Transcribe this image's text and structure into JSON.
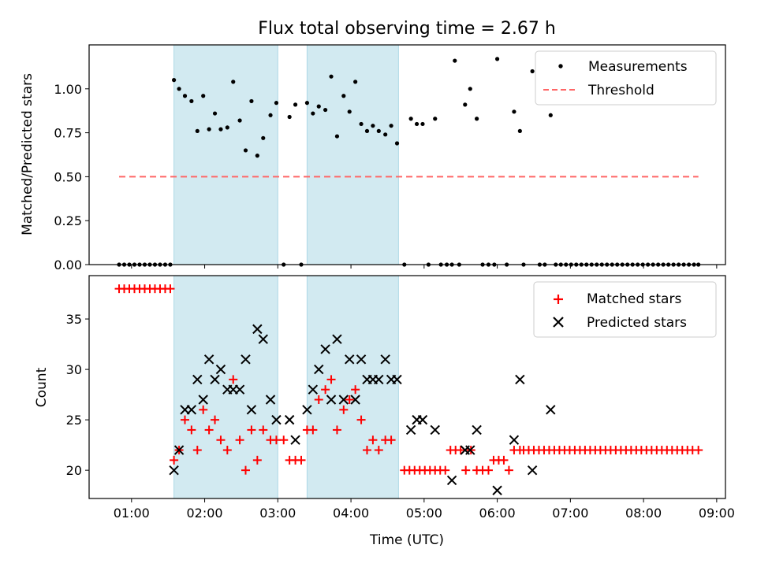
{
  "figure_title": "Flux total observing time = 2.67 h",
  "colors": {
    "shade": "#add8e6",
    "measurement": "#000000",
    "threshold": "#ff6666",
    "matched": "#ff0000",
    "predicted": "#000000"
  },
  "chart_data": [
    {
      "type": "scatter",
      "ylabel": "Matched/Predicted stars",
      "xlim": [
        0.42,
        9.12
      ],
      "ylim": [
        0,
        1.25
      ],
      "x_ticks": [
        1,
        2,
        3,
        4,
        5,
        6,
        7,
        8,
        9
      ],
      "x_tick_labels": [
        "01:00",
        "02:00",
        "03:00",
        "04:00",
        "05:00",
        "06:00",
        "07:00",
        "08:00",
        "09:00"
      ],
      "y_ticks": [
        0,
        0.25,
        0.5,
        0.75,
        1.0
      ],
      "y_tick_labels": [
        "0.00",
        "0.25",
        "0.50",
        "0.75",
        "1.00"
      ],
      "shaded_intervals": [
        [
          1.58,
          3.0
        ],
        [
          3.4,
          4.65
        ]
      ],
      "legend": {
        "placement": "upper-right",
        "entries": [
          "Measurements",
          "Threshold"
        ]
      },
      "threshold": {
        "name": "Threshold",
        "y": 0.5,
        "x_range": [
          0.83,
          8.75
        ]
      },
      "series": [
        {
          "name": "Measurements",
          "points": [
            [
              0.83,
              0
            ],
            [
              0.9,
              0
            ],
            [
              0.97,
              0
            ],
            [
              1.04,
              0
            ],
            [
              1.11,
              0
            ],
            [
              1.18,
              0
            ],
            [
              1.25,
              0
            ],
            [
              1.32,
              0
            ],
            [
              1.39,
              0
            ],
            [
              1.46,
              0
            ],
            [
              1.53,
              0
            ],
            [
              1.58,
              1.05
            ],
            [
              1.65,
              1.0
            ],
            [
              1.73,
              0.96
            ],
            [
              1.82,
              0.93
            ],
            [
              1.9,
              0.76
            ],
            [
              1.98,
              0.96
            ],
            [
              2.06,
              0.77
            ],
            [
              2.14,
              0.86
            ],
            [
              2.22,
              0.77
            ],
            [
              2.31,
              0.78
            ],
            [
              2.39,
              1.04
            ],
            [
              2.48,
              0.82
            ],
            [
              2.56,
              0.65
            ],
            [
              2.64,
              0.93
            ],
            [
              2.72,
              0.62
            ],
            [
              2.8,
              0.72
            ],
            [
              2.9,
              0.85
            ],
            [
              2.98,
              0.92
            ],
            [
              3.08,
              0
            ],
            [
              3.16,
              0.84
            ],
            [
              3.24,
              0.91
            ],
            [
              3.32,
              0
            ],
            [
              3.4,
              0.92
            ],
            [
              3.48,
              0.86
            ],
            [
              3.56,
              0.9
            ],
            [
              3.65,
              0.88
            ],
            [
              3.73,
              1.07
            ],
            [
              3.81,
              0.73
            ],
            [
              3.9,
              0.96
            ],
            [
              3.98,
              0.87
            ],
            [
              4.06,
              1.04
            ],
            [
              4.14,
              0.8
            ],
            [
              4.22,
              0.76
            ],
            [
              4.3,
              0.79
            ],
            [
              4.38,
              0.76
            ],
            [
              4.47,
              0.74
            ],
            [
              4.55,
              0.79
            ],
            [
              4.63,
              0.69
            ],
            [
              4.73,
              0
            ],
            [
              4.82,
              0.83
            ],
            [
              4.9,
              0.8
            ],
            [
              4.98,
              0.8
            ],
            [
              5.06,
              0
            ],
            [
              5.15,
              0.83
            ],
            [
              5.23,
              0
            ],
            [
              5.31,
              0
            ],
            [
              5.38,
              0
            ],
            [
              5.42,
              1.16
            ],
            [
              5.48,
              0
            ],
            [
              5.56,
              0.91
            ],
            [
              5.63,
              1.0
            ],
            [
              5.72,
              0.83
            ],
            [
              5.8,
              0
            ],
            [
              5.88,
              0
            ],
            [
              5.96,
              0
            ],
            [
              6.0,
              1.17
            ],
            [
              6.13,
              0
            ],
            [
              6.23,
              0.87
            ],
            [
              6.31,
              0.76
            ],
            [
              6.36,
              0
            ],
            [
              6.48,
              1.1
            ],
            [
              6.58,
              0
            ],
            [
              6.65,
              0
            ],
            [
              6.73,
              0.85
            ],
            [
              6.8,
              0
            ],
            [
              6.87,
              0
            ],
            [
              6.94,
              0
            ],
            [
              7.01,
              0
            ],
            [
              7.08,
              0
            ],
            [
              7.15,
              0
            ],
            [
              7.22,
              0
            ],
            [
              7.29,
              0
            ],
            [
              7.36,
              0
            ],
            [
              7.43,
              0
            ],
            [
              7.5,
              0
            ],
            [
              7.57,
              0
            ],
            [
              7.64,
              0
            ],
            [
              7.71,
              0
            ],
            [
              7.78,
              0
            ],
            [
              7.85,
              0
            ],
            [
              7.92,
              0
            ],
            [
              7.99,
              0
            ],
            [
              8.06,
              0
            ],
            [
              8.13,
              0
            ],
            [
              8.2,
              0
            ],
            [
              8.27,
              0
            ],
            [
              8.34,
              0
            ],
            [
              8.41,
              0
            ],
            [
              8.48,
              0
            ],
            [
              8.55,
              0
            ],
            [
              8.62,
              0
            ],
            [
              8.69,
              0
            ],
            [
              8.75,
              0
            ]
          ]
        }
      ]
    },
    {
      "type": "scatter",
      "xlabel": "Time (UTC)",
      "ylabel": "Count",
      "xlim": [
        0.42,
        9.12
      ],
      "ylim": [
        17.2,
        39.3
      ],
      "x_ticks": [
        1,
        2,
        3,
        4,
        5,
        6,
        7,
        8,
        9
      ],
      "x_tick_labels": [
        "01:00",
        "02:00",
        "03:00",
        "04:00",
        "05:00",
        "06:00",
        "07:00",
        "08:00",
        "09:00"
      ],
      "y_ticks": [
        20,
        25,
        30,
        35
      ],
      "y_tick_labels": [
        "20",
        "25",
        "30",
        "35"
      ],
      "shaded_intervals": [
        [
          1.58,
          3.0
        ],
        [
          3.4,
          4.65
        ]
      ],
      "legend": {
        "placement": "upper-right",
        "entries": [
          "Matched stars",
          "Predicted stars"
        ]
      },
      "series": [
        {
          "name": "Matched stars",
          "points": [
            [
              0.83,
              38
            ],
            [
              0.9,
              38
            ],
            [
              0.97,
              38
            ],
            [
              1.04,
              38
            ],
            [
              1.11,
              38
            ],
            [
              1.18,
              38
            ],
            [
              1.25,
              38
            ],
            [
              1.32,
              38
            ],
            [
              1.39,
              38
            ],
            [
              1.46,
              38
            ],
            [
              1.53,
              38
            ],
            [
              1.58,
              21
            ],
            [
              1.65,
              22
            ],
            [
              1.73,
              25
            ],
            [
              1.82,
              24
            ],
            [
              1.9,
              22
            ],
            [
              1.98,
              26
            ],
            [
              2.06,
              24
            ],
            [
              2.14,
              25
            ],
            [
              2.22,
              23
            ],
            [
              2.31,
              22
            ],
            [
              2.39,
              29
            ],
            [
              2.48,
              23
            ],
            [
              2.56,
              20
            ],
            [
              2.64,
              24
            ],
            [
              2.72,
              21
            ],
            [
              2.8,
              24
            ],
            [
              2.9,
              23
            ],
            [
              2.98,
              23
            ],
            [
              3.08,
              23
            ],
            [
              3.16,
              21
            ],
            [
              3.24,
              21
            ],
            [
              3.32,
              21
            ],
            [
              3.4,
              24
            ],
            [
              3.48,
              24
            ],
            [
              3.56,
              27
            ],
            [
              3.65,
              28
            ],
            [
              3.73,
              29
            ],
            [
              3.81,
              24
            ],
            [
              3.9,
              26
            ],
            [
              3.98,
              27
            ],
            [
              4.06,
              28
            ],
            [
              4.14,
              25
            ],
            [
              4.22,
              22
            ],
            [
              4.3,
              23
            ],
            [
              4.38,
              22
            ],
            [
              4.47,
              23
            ],
            [
              4.55,
              23
            ],
            [
              4.73,
              20
            ],
            [
              4.8,
              20
            ],
            [
              4.87,
              20
            ],
            [
              4.94,
              20
            ],
            [
              5.01,
              20
            ],
            [
              5.08,
              20
            ],
            [
              5.15,
              20
            ],
            [
              5.22,
              20
            ],
            [
              5.29,
              20
            ],
            [
              5.36,
              22
            ],
            [
              5.43,
              22
            ],
            [
              5.5,
              22
            ],
            [
              5.57,
              20
            ],
            [
              5.64,
              22
            ],
            [
              5.72,
              20
            ],
            [
              5.8,
              20
            ],
            [
              5.88,
              20
            ],
            [
              5.95,
              21
            ],
            [
              6.02,
              21
            ],
            [
              6.09,
              21
            ],
            [
              6.16,
              20
            ],
            [
              6.23,
              22
            ],
            [
              6.31,
              22
            ],
            [
              6.36,
              22
            ],
            [
              6.43,
              22
            ],
            [
              6.5,
              22
            ],
            [
              6.57,
              22
            ],
            [
              6.64,
              22
            ],
            [
              6.71,
              22
            ],
            [
              6.78,
              22
            ],
            [
              6.85,
              22
            ],
            [
              6.92,
              22
            ],
            [
              6.99,
              22
            ],
            [
              7.06,
              22
            ],
            [
              7.13,
              22
            ],
            [
              7.2,
              22
            ],
            [
              7.27,
              22
            ],
            [
              7.34,
              22
            ],
            [
              7.41,
              22
            ],
            [
              7.48,
              22
            ],
            [
              7.55,
              22
            ],
            [
              7.62,
              22
            ],
            [
              7.69,
              22
            ],
            [
              7.76,
              22
            ],
            [
              7.83,
              22
            ],
            [
              7.9,
              22
            ],
            [
              7.97,
              22
            ],
            [
              8.04,
              22
            ],
            [
              8.11,
              22
            ],
            [
              8.18,
              22
            ],
            [
              8.25,
              22
            ],
            [
              8.32,
              22
            ],
            [
              8.39,
              22
            ],
            [
              8.46,
              22
            ],
            [
              8.53,
              22
            ],
            [
              8.6,
              22
            ],
            [
              8.67,
              22
            ],
            [
              8.75,
              22
            ]
          ]
        },
        {
          "name": "Predicted stars",
          "points": [
            [
              1.58,
              20
            ],
            [
              1.65,
              22
            ],
            [
              1.73,
              26
            ],
            [
              1.82,
              26
            ],
            [
              1.9,
              29
            ],
            [
              1.98,
              27
            ],
            [
              2.06,
              31
            ],
            [
              2.14,
              29
            ],
            [
              2.22,
              30
            ],
            [
              2.31,
              28
            ],
            [
              2.39,
              28
            ],
            [
              2.48,
              28
            ],
            [
              2.56,
              31
            ],
            [
              2.64,
              26
            ],
            [
              2.72,
              34
            ],
            [
              2.8,
              33
            ],
            [
              2.9,
              27
            ],
            [
              2.98,
              25
            ],
            [
              3.16,
              25
            ],
            [
              3.24,
              23
            ],
            [
              3.4,
              26
            ],
            [
              3.48,
              28
            ],
            [
              3.56,
              30
            ],
            [
              3.65,
              32
            ],
            [
              3.73,
              27
            ],
            [
              3.81,
              33
            ],
            [
              3.9,
              27
            ],
            [
              3.98,
              31
            ],
            [
              4.06,
              27
            ],
            [
              4.14,
              31
            ],
            [
              4.22,
              29
            ],
            [
              4.3,
              29
            ],
            [
              4.38,
              29
            ],
            [
              4.47,
              31
            ],
            [
              4.55,
              29
            ],
            [
              4.63,
              29
            ],
            [
              4.82,
              24
            ],
            [
              4.9,
              25
            ],
            [
              4.98,
              25
            ],
            [
              5.15,
              24
            ],
            [
              5.38,
              19
            ],
            [
              5.56,
              22
            ],
            [
              5.63,
              22
            ],
            [
              5.72,
              24
            ],
            [
              6.0,
              18
            ],
            [
              6.23,
              23
            ],
            [
              6.31,
              29
            ],
            [
              6.48,
              20
            ],
            [
              6.73,
              26
            ]
          ]
        }
      ]
    }
  ]
}
